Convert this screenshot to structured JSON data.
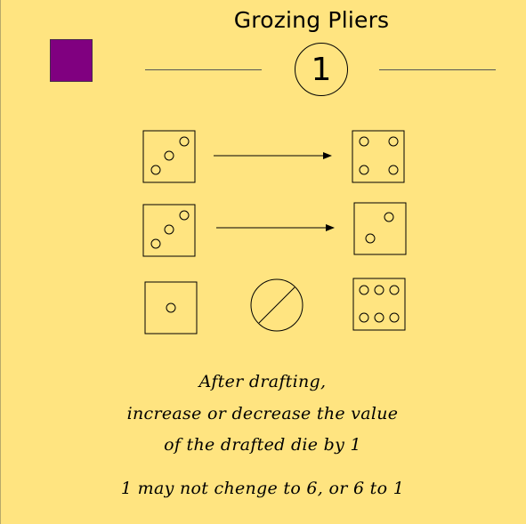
{
  "card": {
    "title": "Grozing Pliers",
    "number": "1",
    "color_swatch": "#800080",
    "background": "#FFE480",
    "rule_text": {
      "line1": "After drafting,",
      "line2": "increase or decrease the value",
      "line3": "of the drafted die by 1",
      "line4": "1 may not chenge to 6, or 6 to 1"
    }
  },
  "diagram": {
    "rows": [
      {
        "from_die_value": 3,
        "connector": "arrow-right",
        "to_die_value": 4
      },
      {
        "from_die_value": 3,
        "connector": "arrow-right",
        "to_die_value": 2
      },
      {
        "from_die_value": 1,
        "connector": "prohibited-icon",
        "to_die_value": 6
      }
    ]
  }
}
